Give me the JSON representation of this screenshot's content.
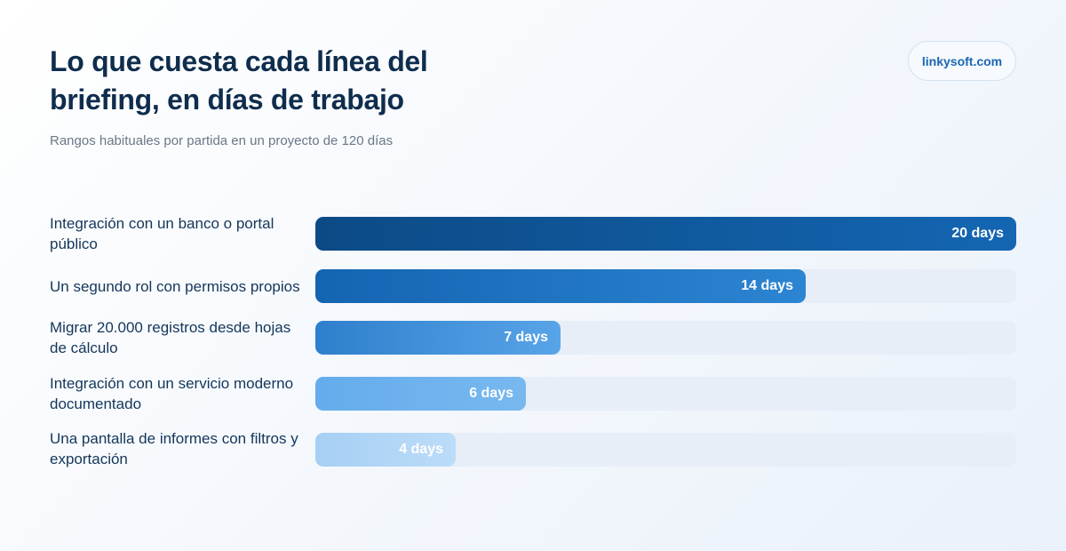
{
  "header": {
    "title": "Lo que cuesta cada línea del briefing, en días de trabajo",
    "subtitle": "Rangos habituales por partida en un proyecto de 120 días",
    "brand": "linkysoft.com"
  },
  "chart_data": {
    "type": "bar",
    "orientation": "horizontal",
    "title": "Lo que cuesta cada línea del briefing, en días de trabajo",
    "subtitle": "Rangos habituales por partida en un proyecto de 120 días",
    "categories": [
      "Integración con un banco o portal público",
      "Un segundo rol con permisos propios",
      "Migrar 20.000 registros desde hojas de cálculo",
      "Integración con un servicio moderno documentado",
      "Una pantalla de informes con filtros y exportación"
    ],
    "values": [
      20,
      14,
      7,
      6,
      4
    ],
    "value_labels": [
      "20 days",
      "14 days",
      "7 days",
      "6 days",
      "4 days"
    ],
    "xlim": [
      0,
      20
    ],
    "grid": false,
    "legend": "none",
    "colors": [
      "#0c4a85",
      "#1f74c2",
      "#3d8ed9",
      "#6bb0ed",
      "#b0d5f6"
    ]
  }
}
